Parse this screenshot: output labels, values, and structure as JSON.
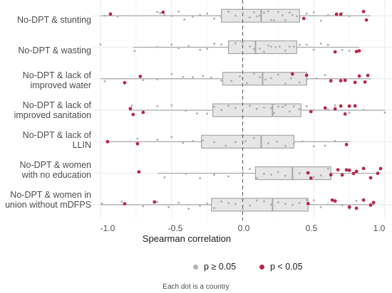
{
  "chart_data": {
    "type": "boxplot",
    "xlabel": "Spearman correlation",
    "xlim": [
      -1.05,
      1.05
    ],
    "xticks": [
      "-1.0",
      "-0.5",
      "0.0",
      "0.5",
      "1.0"
    ],
    "xtick_values": [
      -1.0,
      -0.5,
      0.0,
      0.5,
      1.0
    ],
    "reference_line": 0,
    "grid": true,
    "legend_position": "bottom",
    "colors": {
      "ns": "#b3b3b3",
      "sig": "#b5284b",
      "box_fill": "#e6e6e6",
      "box_line": "#a6a6a6",
      "ref_line": "#666666"
    },
    "legend": [
      {
        "label": "p ≥ 0.05",
        "key": "ns"
      },
      {
        "label": "p < 0.05",
        "key": "sig"
      }
    ],
    "caption": "Each dot is a country",
    "series": [
      {
        "label": "No-DPT & stunting",
        "min": -1.0,
        "q1": -0.15,
        "median": 0.13,
        "q3": 0.4,
        "max": 0.9,
        "ns": [
          -0.97,
          -0.88,
          -0.6,
          -0.58,
          -0.55,
          -0.5,
          -0.45,
          -0.41,
          -0.35,
          -0.3,
          -0.25,
          -0.2,
          -0.15,
          -0.1,
          -0.05,
          0.0,
          0.05,
          0.08,
          0.1,
          0.12,
          0.15,
          0.18,
          0.2,
          0.22,
          0.25,
          0.28,
          0.3,
          0.33,
          0.35,
          0.38,
          0.4,
          0.45,
          0.5,
          0.55,
          0.6,
          0.7,
          0.75
        ],
        "sig": [
          -0.93,
          -0.56,
          0.43,
          0.66,
          0.69,
          0.85,
          0.87
        ]
      },
      {
        "label": "No-DPT & wasting",
        "min": -0.77,
        "q1": -0.1,
        "median": 0.09,
        "q3": 0.38,
        "max": 0.82,
        "ns": [
          -1.0,
          -0.76,
          -0.6,
          -0.5,
          -0.45,
          -0.38,
          -0.3,
          -0.25,
          -0.2,
          -0.15,
          -0.1,
          -0.05,
          0.0,
          0.05,
          0.08,
          0.12,
          0.15,
          0.18,
          0.2,
          0.23,
          0.26,
          0.3,
          0.33,
          0.36,
          0.4,
          0.45,
          0.5,
          0.55,
          0.6,
          0.7,
          0.75
        ],
        "sig": [
          0.65,
          0.8,
          0.82
        ]
      },
      {
        "label": "No-DPT & lack of\nimproved water",
        "min": -1.0,
        "q1": -0.14,
        "median": 0.14,
        "q3": 0.45,
        "max": 0.9,
        "ns": [
          -0.97,
          -0.7,
          -0.6,
          -0.5,
          -0.42,
          -0.35,
          -0.28,
          -0.22,
          -0.15,
          -0.08,
          -0.02,
          0.03,
          0.08,
          0.12,
          0.16,
          0.2,
          0.25,
          0.3,
          0.34,
          0.4,
          0.45,
          0.52,
          0.58,
          0.62
        ],
        "sig": [
          -0.83,
          -0.72,
          0.35,
          0.45,
          0.62,
          0.69,
          0.72,
          0.79,
          0.82,
          0.86,
          0.88
        ]
      },
      {
        "label": "No-DPT & lack of\nimproved sanitation",
        "min": -0.8,
        "q1": -0.21,
        "median": 0.21,
        "q3": 0.41,
        "max": 1.0,
        "ns": [
          -0.78,
          -0.6,
          -0.5,
          -0.4,
          -0.32,
          -0.25,
          -0.2,
          -0.15,
          -0.1,
          -0.05,
          0.0,
          0.05,
          0.1,
          0.15,
          0.2,
          0.22,
          0.25,
          0.28,
          0.3,
          0.33,
          0.36,
          0.4,
          0.45,
          0.5,
          0.6,
          0.65,
          0.75,
          0.85,
          1.0
        ],
        "sig": [
          -0.79,
          -0.77,
          -0.7,
          0.48,
          0.58,
          0.65,
          0.69,
          0.72,
          0.75,
          0.79
        ]
      },
      {
        "label": "No-DPT & lack of\nLLIN",
        "min": -0.95,
        "q1": -0.29,
        "median": 0.13,
        "q3": 0.36,
        "max": 0.75,
        "ns": [
          -0.74,
          -0.6,
          -0.5,
          -0.42,
          -0.35,
          -0.28,
          -0.2,
          -0.12,
          -0.05,
          0.02,
          0.08,
          0.13,
          0.18,
          0.24,
          0.3,
          0.36,
          0.42,
          0.5,
          0.58,
          0.65
        ],
        "sig": [
          -0.95,
          -0.74,
          0.73
        ]
      },
      {
        "label": "No-DPT & women\nwith no education",
        "min": -0.6,
        "q1": 0.09,
        "median": 0.35,
        "q3": 0.62,
        "max": 0.97,
        "ns": [
          -0.55,
          -0.4,
          -0.3,
          -0.2,
          -0.1,
          0.0,
          0.05,
          0.1,
          0.15,
          0.2,
          0.25,
          0.3,
          0.35,
          0.4,
          0.45,
          0.5,
          0.55,
          0.6
        ],
        "sig": [
          -0.73,
          0.46,
          0.48,
          0.62,
          0.67,
          0.7,
          0.73,
          0.75,
          0.78,
          0.8,
          0.85,
          0.9,
          0.95,
          0.97
        ]
      },
      {
        "label": "No-DPT & women in\nunion without mDFPS",
        "min": -1.0,
        "q1": -0.22,
        "median": 0.21,
        "q3": 0.46,
        "max": 0.93,
        "ns": [
          -0.99,
          -0.85,
          -0.7,
          -0.6,
          -0.52,
          -0.45,
          -0.38,
          -0.3,
          -0.25,
          -0.2,
          -0.15,
          -0.1,
          -0.05,
          0.0,
          0.05,
          0.1,
          0.15,
          0.2,
          0.25,
          0.3,
          0.35,
          0.4,
          0.45,
          0.5,
          0.55,
          0.6,
          0.7,
          0.75,
          0.8
        ],
        "sig": [
          -0.83,
          -0.62,
          0.46,
          0.63,
          0.65,
          0.75,
          0.8,
          0.85,
          0.9,
          0.92
        ]
      }
    ]
  }
}
